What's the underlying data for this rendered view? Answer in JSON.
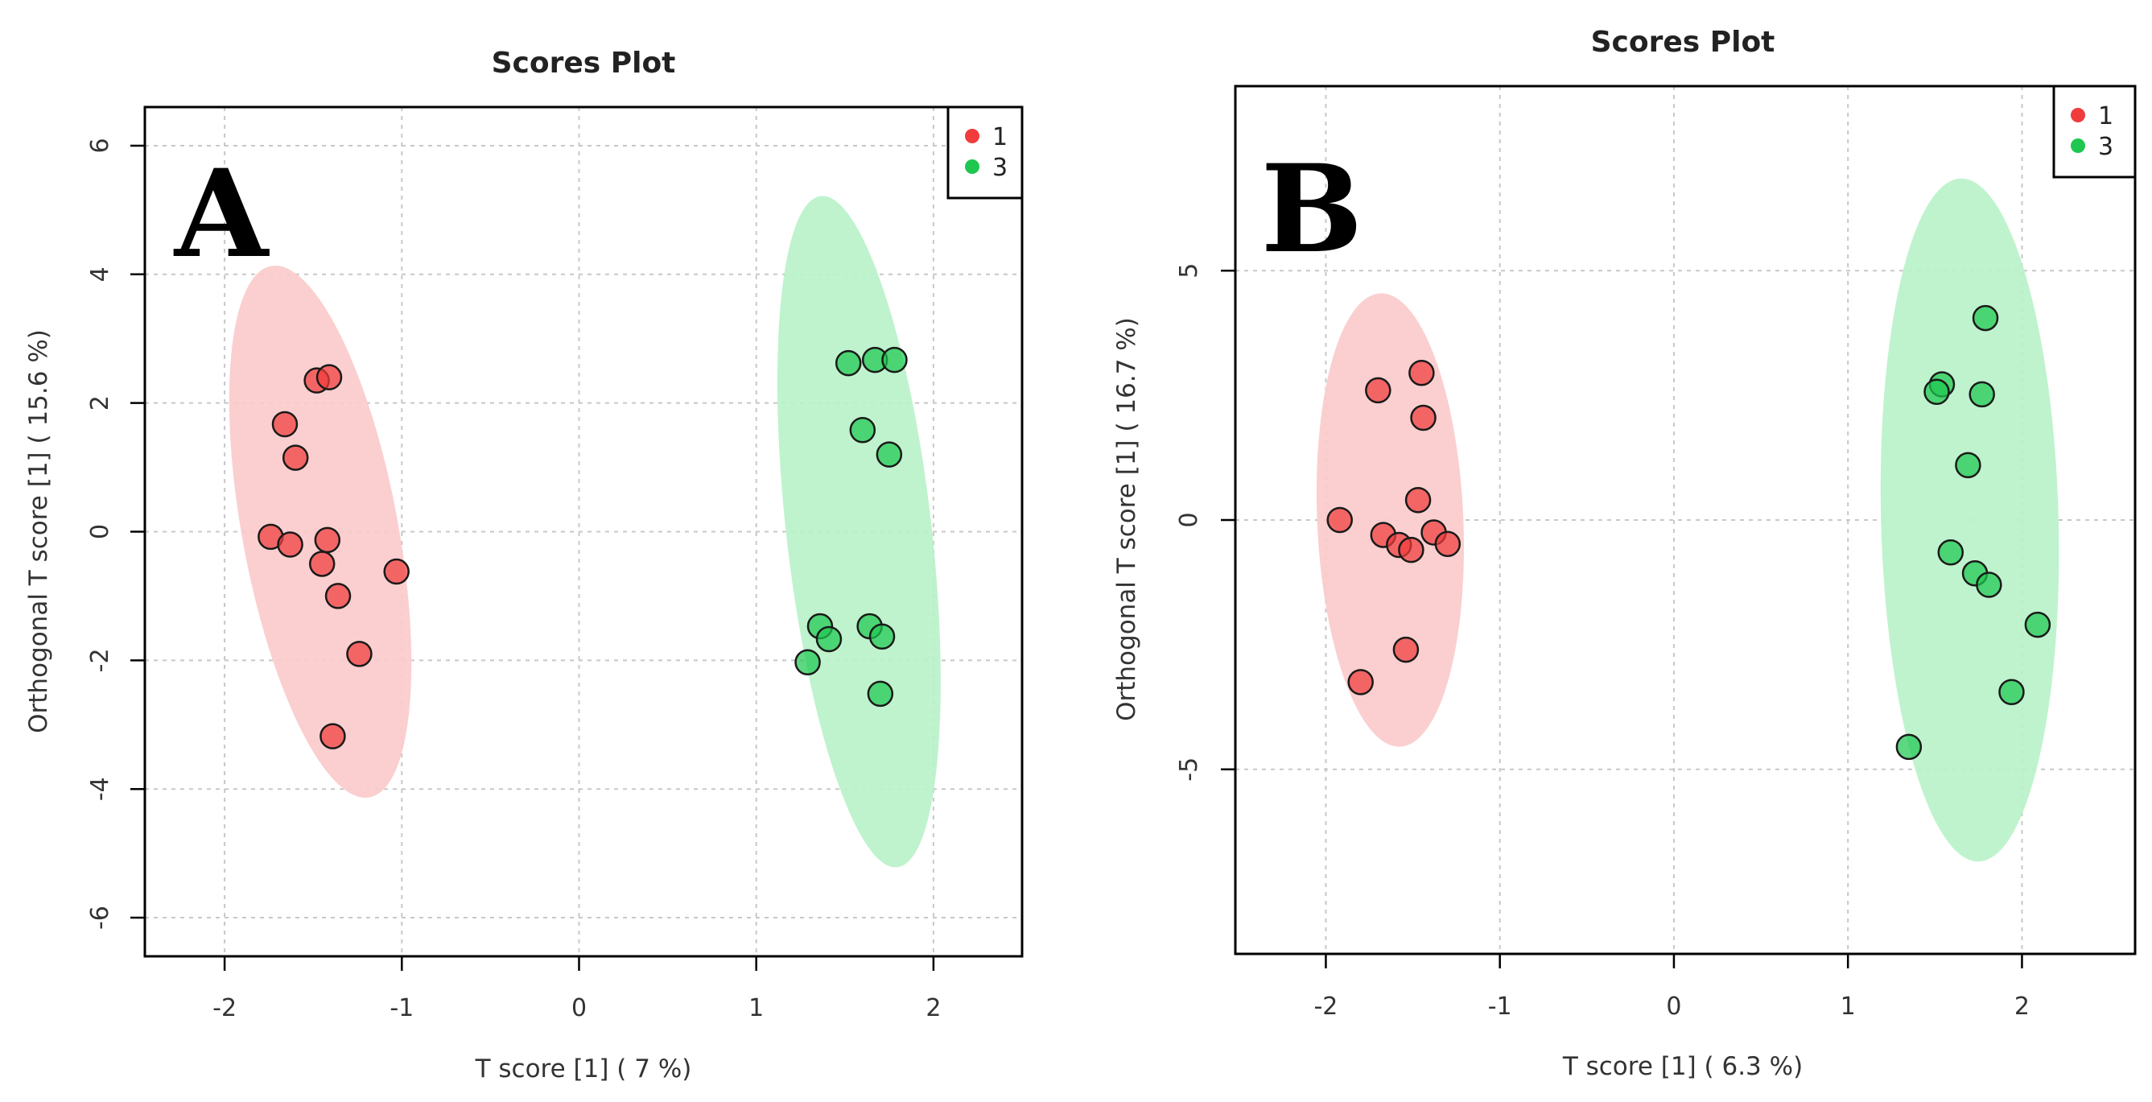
{
  "chart_data": [
    {
      "type": "scatter",
      "panel_label": "A",
      "title": "Scores Plot",
      "xlabel": "T score [1] ( 7 %)",
      "ylabel": "Orthogonal T score [1] ( 15.6 %)",
      "xlim": [
        -2.45,
        2.5
      ],
      "ylim": [
        -6.6,
        6.6
      ],
      "xticks": [
        -2,
        -1,
        0,
        1,
        2
      ],
      "yticks": [
        -6,
        -4,
        -2,
        0,
        2,
        4,
        6
      ],
      "grid": true,
      "legend": {
        "position": "top-right",
        "entries": [
          "1",
          "3"
        ]
      },
      "series": [
        {
          "name": "1",
          "color": "#f03c3c",
          "ellipse_color": "#fbcaca",
          "ellipse": {
            "cx": -1.46,
            "cy": 0.0,
            "rx": 0.44,
            "ry": 4.2,
            "angle_deg": -10.5
          },
          "points": [
            {
              "x": -1.48,
              "y": 2.35
            },
            {
              "x": -1.41,
              "y": 2.4
            },
            {
              "x": -1.66,
              "y": 1.67
            },
            {
              "x": -1.6,
              "y": 1.15
            },
            {
              "x": -1.74,
              "y": -0.08
            },
            {
              "x": -1.63,
              "y": -0.2
            },
            {
              "x": -1.42,
              "y": -0.13
            },
            {
              "x": -1.45,
              "y": -0.5
            },
            {
              "x": -1.36,
              "y": -1.0
            },
            {
              "x": -1.03,
              "y": -0.62
            },
            {
              "x": -1.24,
              "y": -1.9
            },
            {
              "x": -1.39,
              "y": -3.18
            }
          ]
        },
        {
          "name": "3",
          "color": "#1ec850",
          "ellipse_color": "#b8f2c8",
          "ellipse": {
            "cx": 1.58,
            "cy": 0.0,
            "rx": 0.41,
            "ry": 5.25,
            "angle_deg": -6.5
          },
          "points": [
            {
              "x": 1.52,
              "y": 2.62
            },
            {
              "x": 1.67,
              "y": 2.67
            },
            {
              "x": 1.78,
              "y": 2.67
            },
            {
              "x": 1.6,
              "y": 1.58
            },
            {
              "x": 1.75,
              "y": 1.2
            },
            {
              "x": 1.36,
              "y": -1.47
            },
            {
              "x": 1.41,
              "y": -1.67
            },
            {
              "x": 1.64,
              "y": -1.47
            },
            {
              "x": 1.71,
              "y": -1.63
            },
            {
              "x": 1.29,
              "y": -2.03
            },
            {
              "x": 1.7,
              "y": -2.52
            }
          ]
        }
      ]
    },
    {
      "type": "scatter",
      "panel_label": "B",
      "title": "Scores Plot",
      "xlabel": "T score [1] ( 6.3 %)",
      "ylabel": "Orthogonal T score [1] ( 16.7 %)",
      "xlim": [
        -2.52,
        2.65
      ],
      "ylim": [
        -8.7,
        8.7
      ],
      "xticks": [
        -2,
        -1,
        0,
        1,
        2
      ],
      "yticks": [
        -5,
        0,
        5
      ],
      "grid": true,
      "legend": {
        "position": "top-right",
        "entries": [
          "1",
          "3"
        ]
      },
      "series": [
        {
          "name": "1",
          "color": "#f03c3c",
          "ellipse_color": "#fbcaca",
          "ellipse": {
            "cx": -1.63,
            "cy": 0.0,
            "rx": 0.42,
            "ry": 4.55,
            "angle_deg": -2.5
          },
          "points": [
            {
              "x": -1.92,
              "y": 0.0
            },
            {
              "x": -1.7,
              "y": 2.6
            },
            {
              "x": -1.45,
              "y": 2.95
            },
            {
              "x": -1.44,
              "y": 2.05
            },
            {
              "x": -1.47,
              "y": 0.4
            },
            {
              "x": -1.67,
              "y": -0.3
            },
            {
              "x": -1.58,
              "y": -0.5
            },
            {
              "x": -1.51,
              "y": -0.6
            },
            {
              "x": -1.38,
              "y": -0.25
            },
            {
              "x": -1.3,
              "y": -0.48
            },
            {
              "x": -1.54,
              "y": -2.6
            },
            {
              "x": -1.8,
              "y": -3.25
            }
          ]
        },
        {
          "name": "3",
          "color": "#1ec850",
          "ellipse_color": "#b8f2c8",
          "ellipse": {
            "cx": 1.7,
            "cy": 0.0,
            "rx": 0.51,
            "ry": 6.85,
            "angle_deg": -1.5
          },
          "points": [
            {
              "x": 1.79,
              "y": 4.05
            },
            {
              "x": 1.54,
              "y": 2.72
            },
            {
              "x": 1.51,
              "y": 2.57
            },
            {
              "x": 1.77,
              "y": 2.52
            },
            {
              "x": 1.69,
              "y": 1.1
            },
            {
              "x": 1.59,
              "y": -0.65
            },
            {
              "x": 1.73,
              "y": -1.07
            },
            {
              "x": 1.81,
              "y": -1.3
            },
            {
              "x": 2.09,
              "y": -2.1
            },
            {
              "x": 1.94,
              "y": -3.45
            },
            {
              "x": 1.35,
              "y": -4.55
            }
          ]
        }
      ]
    }
  ]
}
